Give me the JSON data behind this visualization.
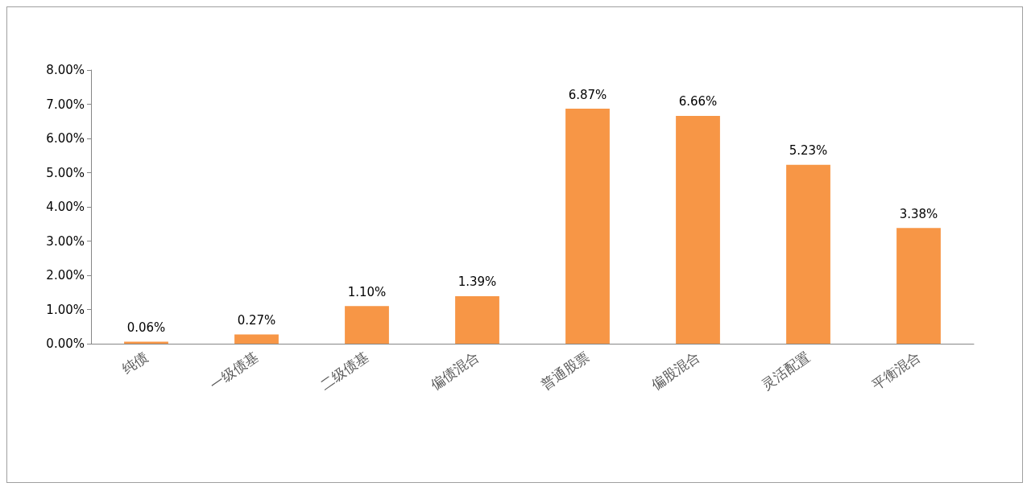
{
  "chart_data": {
    "type": "bar",
    "categories": [
      "纯债",
      "一级债基",
      "二级债基",
      "偏债混合",
      "普通股票",
      "偏股混合",
      "灵活配置",
      "平衡混合"
    ],
    "values": [
      0.06,
      0.27,
      1.1,
      1.39,
      6.87,
      6.66,
      5.23,
      3.38
    ],
    "value_labels": [
      "0.06%",
      "0.27%",
      "1.10%",
      "1.39%",
      "6.87%",
      "6.66%",
      "5.23%",
      "3.38%"
    ],
    "color": "#f79646",
    "ylim": [
      0,
      8
    ],
    "yticks": [
      {
        "value": 0,
        "label": "0.00%"
      },
      {
        "value": 1,
        "label": "1.00%"
      },
      {
        "value": 2,
        "label": "2.00%"
      },
      {
        "value": 3,
        "label": "3.00%"
      },
      {
        "value": 4,
        "label": "4.00%"
      },
      {
        "value": 5,
        "label": "5.00%"
      },
      {
        "value": 6,
        "label": "6.00%"
      },
      {
        "value": 7,
        "label": "7.00%"
      },
      {
        "value": 8,
        "label": "8.00%"
      }
    ],
    "grid": false
  }
}
